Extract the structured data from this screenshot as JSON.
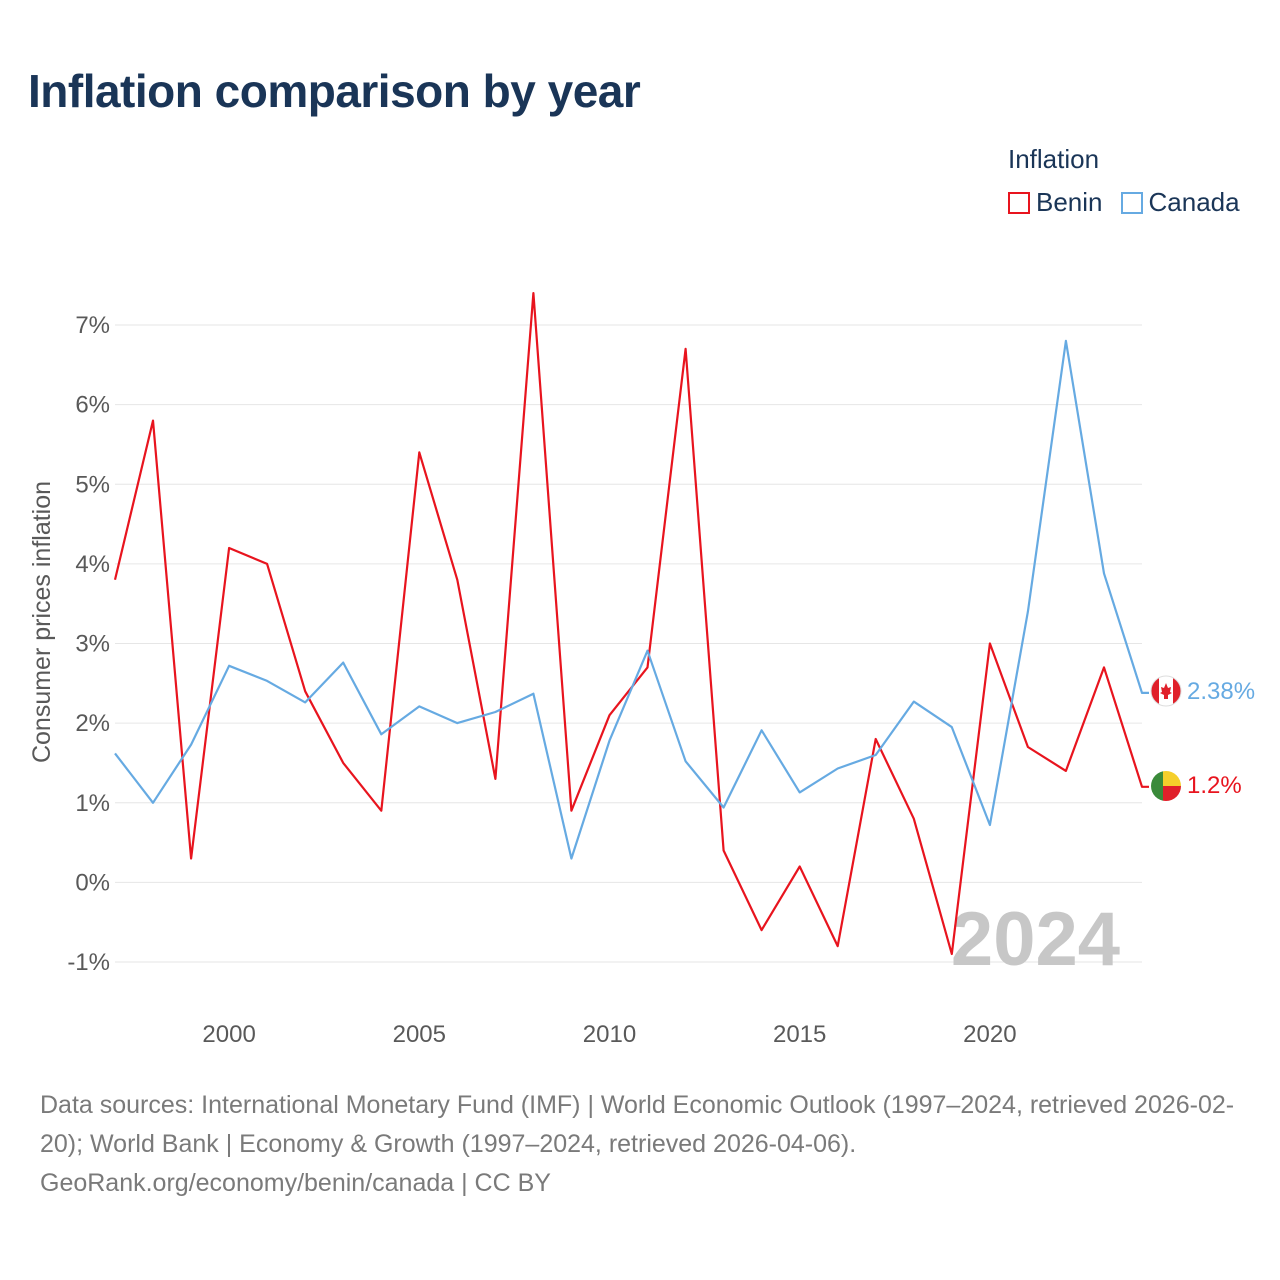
{
  "title": "Inflation comparison by year",
  "legend": {
    "title": "Inflation",
    "items": [
      {
        "label": "Benin",
        "color": "#e8141e"
      },
      {
        "label": "Canada",
        "color": "#66aae2"
      }
    ]
  },
  "chart_data": {
    "type": "line",
    "title": "Inflation comparison by year",
    "xlabel": "",
    "ylabel": "Consumer prices inflation",
    "x": [
      1997,
      1998,
      1999,
      2000,
      2001,
      2002,
      2003,
      2004,
      2005,
      2006,
      2007,
      2008,
      2009,
      2010,
      2011,
      2012,
      2013,
      2014,
      2015,
      2016,
      2017,
      2018,
      2019,
      2020,
      2021,
      2022,
      2023,
      2024
    ],
    "xlim": [
      1997,
      2024
    ],
    "ylim": [
      -1,
      7
    ],
    "x_ticks": [
      {
        "value": 2000,
        "label": "2000"
      },
      {
        "value": 2005,
        "label": "2005"
      },
      {
        "value": 2010,
        "label": "2010"
      },
      {
        "value": 2015,
        "label": "2015"
      },
      {
        "value": 2020,
        "label": "2020"
      }
    ],
    "y_ticks": [
      {
        "value": -1,
        "label": "-1%"
      },
      {
        "value": 0,
        "label": "0%"
      },
      {
        "value": 1,
        "label": "1%"
      },
      {
        "value": 2,
        "label": "2%"
      },
      {
        "value": 3,
        "label": "3%"
      },
      {
        "value": 4,
        "label": "4%"
      },
      {
        "value": 5,
        "label": "5%"
      },
      {
        "value": 6,
        "label": "6%"
      },
      {
        "value": 7,
        "label": "7%"
      }
    ],
    "grid": true,
    "series": [
      {
        "name": "Benin",
        "color": "#e8141e",
        "values": [
          3.8,
          5.8,
          0.3,
          4.2,
          4.0,
          2.4,
          1.5,
          0.9,
          5.4,
          3.8,
          1.3,
          7.4,
          0.9,
          2.1,
          2.7,
          6.7,
          0.4,
          -0.6,
          0.2,
          -0.8,
          1.8,
          0.8,
          -0.9,
          3.0,
          1.7,
          1.4,
          2.7,
          1.2
        ],
        "end_label": "1.2%"
      },
      {
        "name": "Canada",
        "color": "#66aae2",
        "values": [
          1.62,
          1.0,
          1.73,
          2.72,
          2.53,
          2.26,
          2.76,
          1.86,
          2.21,
          2.0,
          2.14,
          2.37,
          0.3,
          1.78,
          2.91,
          1.52,
          0.94,
          1.91,
          1.13,
          1.43,
          1.6,
          2.27,
          1.95,
          0.72,
          3.4,
          6.8,
          3.88,
          2.38
        ],
        "end_label": "2.38%"
      }
    ],
    "annotations": [
      {
        "text": "2024",
        "kind": "current-year-watermark"
      }
    ]
  },
  "footer": {
    "sources": "Data sources: International Monetary Fund (IMF) | World Economic Outlook (1997–2024, retrieved 2026-02-20); World Bank | Economy & Growth (1997–2024, retrieved 2026-04-06).",
    "credit": "GeoRank.org/economy/benin/canada | CC BY"
  }
}
